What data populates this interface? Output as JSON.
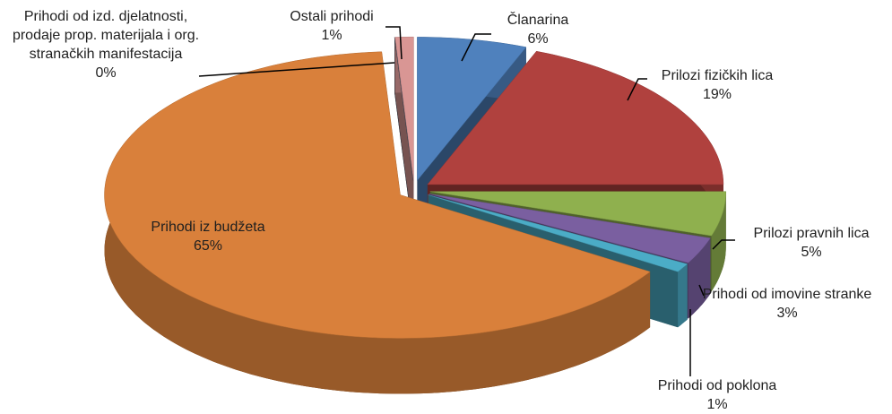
{
  "chart_data": {
    "type": "pie3d",
    "categories": [
      "Članarina",
      "Prilozi fizičkih lica",
      "Prilozi pravnih lica",
      "Prihodi od imovine stranke",
      "Prihodi od poklona",
      "Prihodi iz budžeta",
      "Prihodi od izd. djelatnosti, prodaje prop. materijala i org. stranačkih manifestacija",
      "Ostali prihodi"
    ],
    "values": [
      6,
      19,
      5,
      3,
      1,
      65,
      0,
      1
    ],
    "value_labels": [
      "6%",
      "19%",
      "5%",
      "3%",
      "1%",
      "65%",
      "0%",
      "1%"
    ],
    "colors": [
      "#4f81bd",
      "#b0413e",
      "#8fb04e",
      "#7a5fa0",
      "#4bacc6",
      "#d9803b",
      "#404a5a",
      "#d99694"
    ]
  }
}
